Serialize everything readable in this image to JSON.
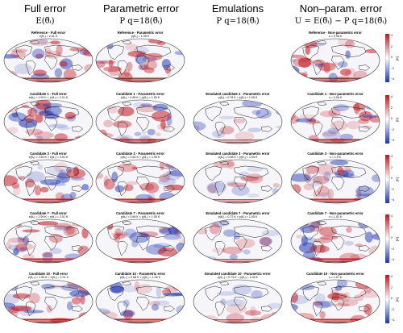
{
  "columns": [
    {
      "title": "Full error",
      "formula": "E(θ̃ᵢ)"
    },
    {
      "title": "Parametric error",
      "formula": "P q=18(θ̃ᵢ)"
    },
    {
      "title": "Emulations",
      "formula": "P q=18(θ̃ᵢ)"
    },
    {
      "title": "Non–param. error",
      "formula": "U = E(θ̃ᵢ) − P q=18(θ̃ᵢ)"
    }
  ],
  "rows": [
    {
      "panels": [
        {
          "title": "Reference - Full error",
          "sub": "e(θ₀) = 2.01 K"
        },
        {
          "title": "Reference - Parametric error",
          "sub": "p(θ₀) = 1.05 K"
        },
        null,
        {
          "title": "Reference - Non-parametric error",
          "sub": "u = 0.96 K"
        }
      ]
    },
    {
      "panels": [
        {
          "title": "Candidate 1 - Full error",
          "sub": "e(θ₁) = 1.92 K < e(θ₀) = 2.01 K"
        },
        {
          "title": "Candidate 1 - Parametric error",
          "sub": "p(θ₁) = 0.66 K < p(θ₀) = 1.05 K"
        },
        {
          "title": "Emulated candidate 1 - Parametric error",
          "sub": "p(θ₁) = 0.78 K < p(θ₀) = 1.05 K"
        },
        {
          "title": "Candidate 1 - Non-parametric error",
          "sub": "u = 0.96 K"
        }
      ]
    },
    {
      "panels": [
        {
          "title": "Candidate 3 - Full error",
          "sub": "e(θ₃) = 1.62 K < e(θ₀) = 2.01 K"
        },
        {
          "title": "Candidate 3 - Parametric error",
          "sub": "p(θ₃) = 0.62 K < p(θ₀) = 1.05 K"
        },
        {
          "title": "Emulated candidate 3 - Parametric error",
          "sub": "p(θ₃) = 0.58 K < p(θ₀) = 1.05 K"
        },
        {
          "title": "Candidate 3 - Non-parametric error",
          "sub": "u = 1.0 K"
        }
      ]
    },
    {
      "panels": [
        {
          "title": "Candidate 7 - Full error",
          "sub": "e(θ₇) = 1.99 K < e(θ₀) = 2.01 K"
        },
        {
          "title": "Candidate 7 - Parametric error",
          "sub": "p(θ₇) = 0.68 K < p(θ₀) = 1.05 K"
        },
        {
          "title": "Emulated candidate 7 - Parametric error",
          "sub": "p(θ₇) = 0.72 K < p(θ₀) = 1.05 K"
        },
        {
          "title": "Candidate 7 - Non-parametric error",
          "sub": "u = 1.01 K"
        }
      ]
    },
    {
      "panels": [
        {
          "title": "Candidate 10 - Full error",
          "sub": "e(θ₁₀) = 1.95 K < e(θ₀) = 2.01 K"
        },
        {
          "title": "Candidate 10 - Parametric error",
          "sub": "p(θ₁₀) = 0.68 K < p(θ₀) = 1.05 K"
        },
        {
          "title": "Emulated candidate 10 - Parametric error",
          "sub": "p(θ₁₀) = 0.73 K < p(θ₀) = 1.05 K"
        },
        {
          "title": "Candidate 10 - Non-parametric error",
          "sub": "u = 1.07 K"
        }
      ]
    }
  ],
  "colorbar": {
    "ticks": [
      "4",
      "2",
      "0",
      "−2",
      "−4"
    ],
    "label": "[K]",
    "colors": {
      "high": "#c0141c",
      "mid": "#ffffff",
      "low": "#1c33b0"
    }
  }
}
